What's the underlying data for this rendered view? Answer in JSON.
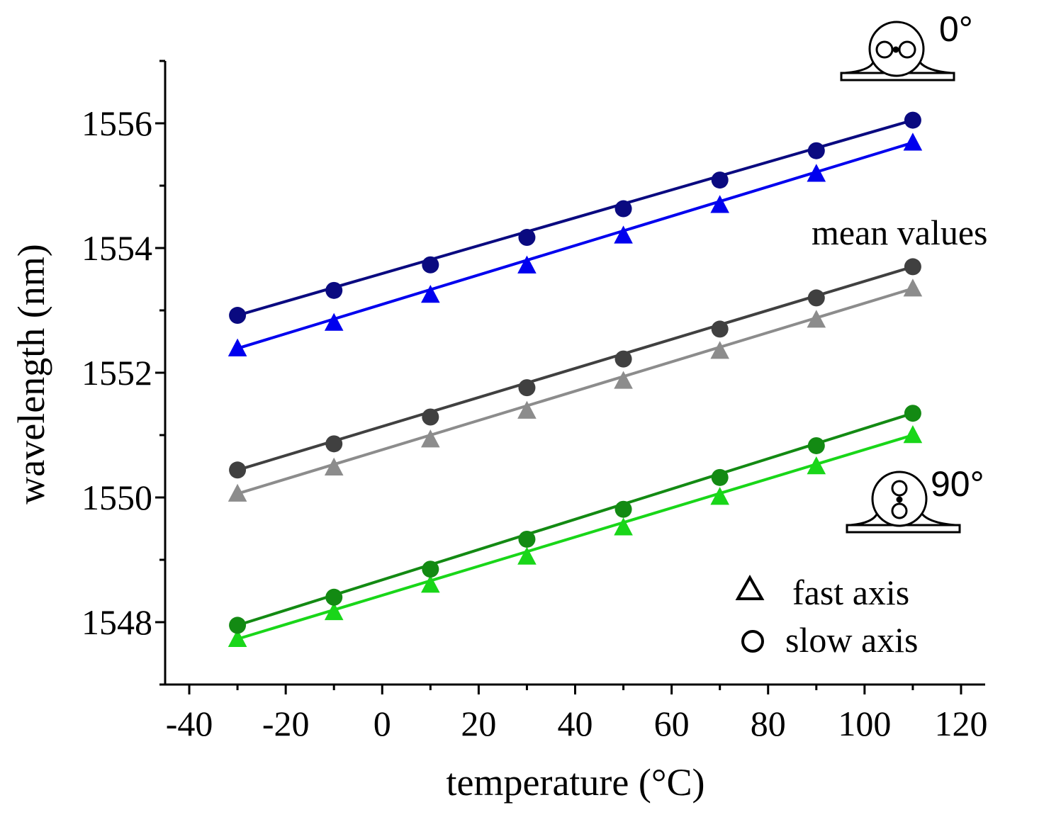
{
  "chart_data": {
    "type": "line",
    "xlabel": "temperature (°C)",
    "ylabel": "wavelength (nm)",
    "xlim": [
      -45,
      125
    ],
    "ylim": [
      1547.0,
      1557.0
    ],
    "xticks": [
      -40,
      -20,
      0,
      20,
      40,
      60,
      80,
      100,
      120
    ],
    "yticks": [
      1548,
      1550,
      1552,
      1554,
      1556
    ],
    "x": [
      -30,
      -10,
      10,
      30,
      50,
      70,
      90,
      110
    ],
    "series": [
      {
        "name": "",
        "group": "0°",
        "axis": "slow",
        "marker": "circle",
        "color": "#0a0a80",
        "values": [
          1552.92,
          1553.32,
          1553.73,
          1554.17,
          1554.63,
          1555.09,
          1555.56,
          1556.05
        ]
      },
      {
        "name": "",
        "group": "0°",
        "axis": "fast",
        "marker": "triangle",
        "color": "#0000ee",
        "values": [
          1552.39,
          1552.8,
          1553.25,
          1553.72,
          1554.2,
          1554.69,
          1555.19,
          1555.69
        ]
      },
      {
        "name": "",
        "group": "mean values",
        "axis": "slow",
        "marker": "circle",
        "color": "#404040",
        "values": [
          1550.44,
          1550.86,
          1551.29,
          1551.76,
          1552.22,
          1552.7,
          1553.2,
          1553.7
        ]
      },
      {
        "name": "",
        "group": "mean values",
        "axis": "fast",
        "marker": "triangle",
        "color": "#8c8c8c",
        "values": [
          1550.06,
          1550.48,
          1550.93,
          1551.39,
          1551.87,
          1552.35,
          1552.85,
          1553.35
        ]
      },
      {
        "name": "",
        "group": "90°",
        "axis": "slow",
        "marker": "circle",
        "color": "#138a13",
        "values": [
          1547.95,
          1548.4,
          1548.85,
          1549.33,
          1549.81,
          1550.32,
          1550.83,
          1551.35
        ]
      },
      {
        "name": "",
        "group": "90°",
        "axis": "fast",
        "marker": "triangle",
        "color": "#19d619",
        "values": [
          1547.73,
          1548.16,
          1548.6,
          1549.05,
          1549.52,
          1550.01,
          1550.5,
          1551.0
        ]
      }
    ],
    "annotations": {
      "angle_top": "0°",
      "mean_label": "mean values",
      "angle_bottom": "90°"
    },
    "legend": {
      "placement": "bottom-right",
      "items": [
        {
          "label": "fast axis",
          "marker": "triangle"
        },
        {
          "label": "slow axis",
          "marker": "circle"
        }
      ]
    },
    "grid": false
  }
}
